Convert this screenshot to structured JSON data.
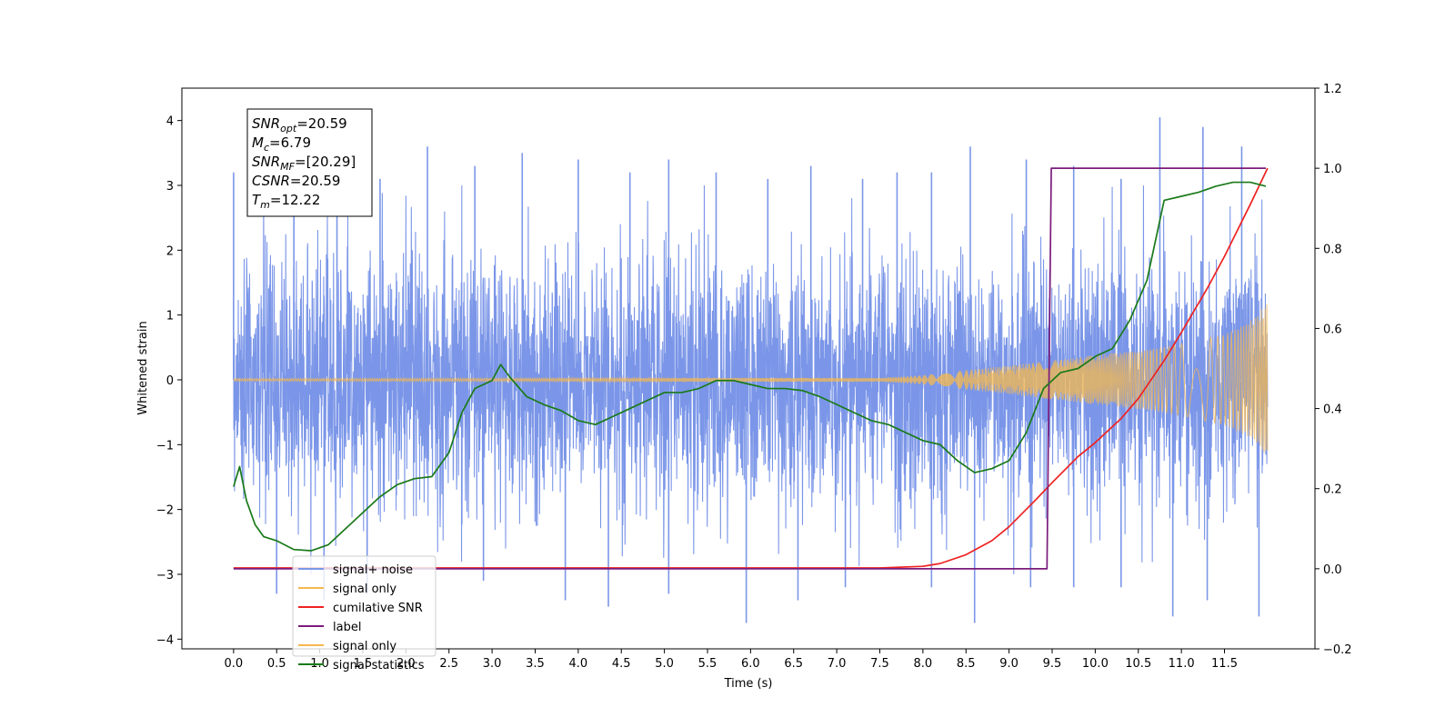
{
  "chart_data": {
    "type": "line",
    "xlabel": "Time (s)",
    "ylabel": "Whitened strain",
    "xlim": [
      -0.6,
      12.55
    ],
    "ylim": [
      -4.15,
      4.5
    ],
    "y2lim": [
      -0.2,
      1.2
    ],
    "x_ticks": [
      "0.0",
      "0.5",
      "1.0",
      "1.5",
      "2.0",
      "2.5",
      "3.0",
      "3.5",
      "4.0",
      "4.5",
      "5.0",
      "5.5",
      "6.0",
      "6.5",
      "7.0",
      "7.5",
      "8.0",
      "8.5",
      "9.0",
      "9.5",
      "10.0",
      "10.5",
      "11.0",
      "11.5"
    ],
    "y_ticks": [
      "4",
      "3",
      "2",
      "1",
      "0",
      "−1",
      "−2",
      "−3",
      "−4"
    ],
    "y2_ticks": [
      "1.2",
      "1.0",
      "0.8",
      "0.6",
      "0.4",
      "0.2",
      "0.0",
      "−0.2"
    ],
    "legend_position": "lower-left",
    "annotation": [
      {
        "base": "SNR",
        "sub": "opt",
        "value": "=20.59"
      },
      {
        "base": "M",
        "sub": "c",
        "value": "=6.79"
      },
      {
        "base": "SNR",
        "sub": "MF",
        "value": "=[20.29]"
      },
      {
        "base": "CSNR",
        "sub": "",
        "value": "=20.59"
      },
      {
        "base": "T",
        "sub": "m",
        "value": "=12.22"
      }
    ],
    "series": [
      {
        "name": "signal+ noise",
        "color": "#7b96e8",
        "axis": "left",
        "x_range": [
          0.0,
          12.0
        ],
        "noise_sigma": 1.0,
        "peaks_high": [
          [
            0.0,
            3.2
          ],
          [
            0.7,
            2.9
          ],
          [
            1.2,
            3.0
          ],
          [
            1.7,
            3.1
          ],
          [
            2.25,
            3.6
          ],
          [
            2.8,
            3.3
          ],
          [
            3.35,
            3.5
          ],
          [
            4.0,
            3.4
          ],
          [
            4.6,
            3.2
          ],
          [
            5.05,
            3.4
          ],
          [
            5.6,
            3.2
          ],
          [
            6.2,
            3.1
          ],
          [
            6.7,
            3.3
          ],
          [
            7.3,
            3.1
          ],
          [
            7.7,
            3.2
          ],
          [
            8.1,
            3.2
          ],
          [
            8.55,
            3.6
          ],
          [
            9.2,
            3.4
          ],
          [
            9.75,
            3.3
          ],
          [
            10.3,
            3.1
          ],
          [
            10.75,
            4.05
          ],
          [
            11.25,
            3.9
          ],
          [
            11.7,
            3.6
          ]
        ],
        "peaks_low": [
          [
            0.5,
            -3.3
          ],
          [
            1.05,
            -3.4
          ],
          [
            1.55,
            -3.3
          ],
          [
            2.9,
            -3.1
          ],
          [
            3.85,
            -3.4
          ],
          [
            4.35,
            -3.5
          ],
          [
            5.05,
            -3.3
          ],
          [
            5.95,
            -3.75
          ],
          [
            6.55,
            -3.4
          ],
          [
            7.1,
            -3.2
          ],
          [
            8.1,
            -3.2
          ],
          [
            8.6,
            -3.75
          ],
          [
            9.25,
            -3.2
          ],
          [
            9.75,
            -3.2
          ],
          [
            10.3,
            -3.2
          ],
          [
            10.9,
            -3.65
          ],
          [
            11.3,
            -3.4
          ],
          [
            11.9,
            -3.65
          ]
        ]
      },
      {
        "name": "signal only",
        "color": "#f5b84d",
        "axis": "left",
        "envelope_x": [
          0.0,
          7.5,
          8.0,
          8.5,
          9.0,
          9.5,
          10.0,
          10.5,
          11.0,
          11.5,
          11.8,
          12.0
        ],
        "envelope_amp": [
          0.02,
          0.03,
          0.07,
          0.15,
          0.22,
          0.3,
          0.38,
          0.45,
          0.55,
          0.7,
          0.9,
          1.2
        ]
      },
      {
        "name": "cumilative SNR",
        "color": "#ee2222",
        "axis": "right",
        "x": [
          0.0,
          7.5,
          8.0,
          8.2,
          8.5,
          8.8,
          9.0,
          9.3,
          9.5,
          9.8,
          10.0,
          10.3,
          10.5,
          10.8,
          11.0,
          11.3,
          11.5,
          11.8,
          12.0
        ],
        "values": [
          0.002,
          0.002,
          0.006,
          0.013,
          0.035,
          0.07,
          0.105,
          0.17,
          0.215,
          0.28,
          0.315,
          0.375,
          0.425,
          0.52,
          0.59,
          0.7,
          0.78,
          0.91,
          1.0
        ]
      },
      {
        "name": "label",
        "color": "#7b1b7b",
        "axis": "right",
        "x": [
          0.0,
          9.44,
          9.49,
          11.98
        ],
        "values": [
          0.0,
          0.0,
          1.0,
          1.0
        ]
      },
      {
        "name": "signal only",
        "color": "#f5b84d",
        "axis": "left",
        "legend_only": true
      },
      {
        "name": "signal statistics",
        "color": "#1a7a1a",
        "axis": "right",
        "x": [
          0.0,
          0.07,
          0.15,
          0.25,
          0.35,
          0.5,
          0.7,
          0.9,
          1.1,
          1.3,
          1.5,
          1.7,
          1.9,
          2.1,
          2.3,
          2.5,
          2.65,
          2.8,
          3.0,
          3.1,
          3.2,
          3.4,
          3.6,
          3.8,
          4.0,
          4.2,
          4.4,
          4.6,
          4.8,
          5.0,
          5.2,
          5.4,
          5.6,
          5.8,
          6.0,
          6.2,
          6.4,
          6.6,
          6.8,
          7.0,
          7.2,
          7.4,
          7.6,
          7.8,
          8.0,
          8.2,
          8.4,
          8.6,
          8.8,
          9.0,
          9.2,
          9.4,
          9.6,
          9.8,
          10.0,
          10.2,
          10.4,
          10.6,
          10.8,
          11.0,
          11.2,
          11.4,
          11.6,
          11.8,
          11.98
        ],
        "values": [
          0.205,
          0.255,
          0.17,
          0.11,
          0.08,
          0.07,
          0.048,
          0.045,
          0.06,
          0.1,
          0.14,
          0.18,
          0.21,
          0.225,
          0.23,
          0.29,
          0.39,
          0.45,
          0.47,
          0.51,
          0.48,
          0.43,
          0.41,
          0.395,
          0.37,
          0.36,
          0.38,
          0.4,
          0.42,
          0.44,
          0.44,
          0.45,
          0.47,
          0.47,
          0.46,
          0.45,
          0.45,
          0.445,
          0.43,
          0.41,
          0.39,
          0.37,
          0.36,
          0.34,
          0.32,
          0.31,
          0.27,
          0.24,
          0.25,
          0.27,
          0.34,
          0.45,
          0.49,
          0.5,
          0.53,
          0.55,
          0.62,
          0.72,
          0.92,
          0.93,
          0.94,
          0.955,
          0.965,
          0.965,
          0.955
        ]
      }
    ]
  }
}
